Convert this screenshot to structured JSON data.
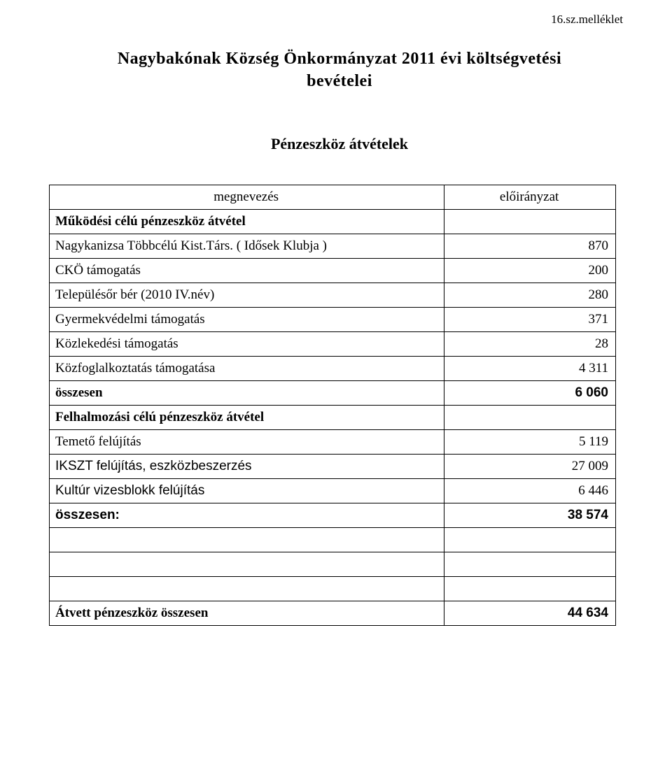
{
  "attachment_label": "16.sz.melléklet",
  "title_line1": "Nagybakónak Község Önkormányzat 2011 évi  költségvetési",
  "title_line2": "bevételei",
  "subtitle": "Pénzeszköz átvételek",
  "header": {
    "name": "megnevezés",
    "amount": "előirányzat"
  },
  "rows": [
    {
      "label": "Működési célú pénzeszköz átvétel",
      "value": "",
      "bold": true
    },
    {
      "label": "Nagykanizsa Többcélú Kist.Társ. ( Idősek Klubja )",
      "value": "870"
    },
    {
      "label": "CKÖ támogatás",
      "value": "200"
    },
    {
      "label": "Településőr bér (2010 IV.név)",
      "value": "280"
    },
    {
      "label": "Gyermekvédelmi támogatás",
      "value": "371"
    },
    {
      "label": "Közlekedési támogatás",
      "value": "28"
    },
    {
      "label": "Közfoglalkoztatás támogatása",
      "value": "4 311"
    },
    {
      "label": "összesen",
      "value": "6 060",
      "bold": true,
      "sans_value": true
    },
    {
      "label": "Felhalmozási célú pénzeszköz átvétel",
      "value": "",
      "bold": true
    },
    {
      "label": "Temető felújítás",
      "value": "5 119"
    },
    {
      "label": "IKSZT felújítás, eszközbeszerzés",
      "value": "27 009",
      "sans_label": true
    },
    {
      "label": "Kultúr vizesblokk felújítás",
      "value": "6 446",
      "sans_label": true
    },
    {
      "label": "összesen:",
      "value": "38 574",
      "bold": true,
      "sans_all": true
    }
  ],
  "blank_rows": 3,
  "total": {
    "label": "Átvett pénzeszköz összesen",
    "value": "44 634"
  },
  "colors": {
    "background": "#ffffff",
    "text": "#000000",
    "border": "#000000"
  },
  "typography": {
    "serif_family": "Bookman Old Style",
    "sans_family": "Arial",
    "title_fontsize_pt": 18,
    "body_fontsize_pt": 14
  }
}
